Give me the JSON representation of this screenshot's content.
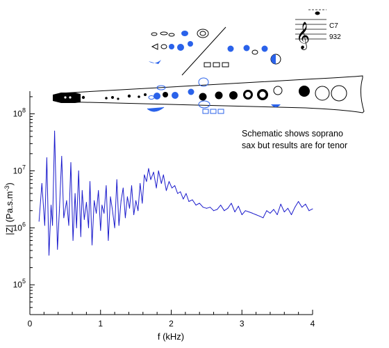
{
  "chart_data": {
    "type": "line",
    "xlabel": "f (kHz)",
    "ylabel_main": "|Z| (Pa.s.m",
    "ylabel_sup": "-3",
    "ylabel_close": ")",
    "xlim": [
      0,
      4
    ],
    "ylim": [
      30000,
      250000000
    ],
    "yscale": "log",
    "grid": false,
    "xticks": [
      0,
      1,
      2,
      3,
      4
    ],
    "xtick_labels": [
      "0",
      "1",
      "2",
      "3",
      "4"
    ],
    "yticks": [
      100000,
      1000000,
      10000000,
      100000000
    ],
    "ytick_base": "10",
    "ytick_exps": [
      "5",
      "6",
      "7",
      "8"
    ],
    "series": [
      {
        "color": "#1a1acc",
        "x": [
          0.13,
          0.17,
          0.21,
          0.24,
          0.27,
          0.3,
          0.32,
          0.35,
          0.39,
          0.42,
          0.45,
          0.48,
          0.52,
          0.55,
          0.58,
          0.61,
          0.64,
          0.66,
          0.69,
          0.72,
          0.74,
          0.77,
          0.8,
          0.83,
          0.85,
          0.88,
          0.91,
          0.94,
          0.97,
          1.0,
          1.02,
          1.05,
          1.08,
          1.11,
          1.14,
          1.17,
          1.2,
          1.23,
          1.26,
          1.29,
          1.32,
          1.35,
          1.38,
          1.41,
          1.44,
          1.47,
          1.5,
          1.53,
          1.56,
          1.59,
          1.62,
          1.65,
          1.68,
          1.71,
          1.75,
          1.79,
          1.82,
          1.86,
          1.89,
          1.93,
          1.97,
          2.01,
          2.05,
          2.09,
          2.13,
          2.17,
          2.21,
          2.25,
          2.3,
          2.35,
          2.4,
          2.45,
          2.5,
          2.55,
          2.6,
          2.65,
          2.7,
          2.75,
          2.8,
          2.85,
          2.9,
          2.95,
          3.0,
          3.05,
          3.1,
          3.15,
          3.2,
          3.25,
          3.3,
          3.35,
          3.4,
          3.45,
          3.5,
          3.55,
          3.6,
          3.65,
          3.7,
          3.75,
          3.8,
          3.85,
          3.9,
          3.95,
          4.0
        ],
        "y": [
          1300000,
          6000000,
          1100000,
          17000000,
          330000,
          2500000,
          1100000,
          50000000,
          420000,
          2300000,
          18000000,
          1500000,
          3000000,
          1100000,
          14000000,
          600000,
          4000000,
          1000000,
          10000000,
          700000,
          4500000,
          1400000,
          2800000,
          1000000,
          6500000,
          500000,
          3000000,
          1800000,
          4500000,
          900000,
          2500000,
          1800000,
          5500000,
          600000,
          3500000,
          2000000,
          1000000,
          7000000,
          1100000,
          3000000,
          5000000,
          1500000,
          3500000,
          2200000,
          5500000,
          1700000,
          3000000,
          2000000,
          6000000,
          2700000,
          8500000,
          6500000,
          11000000,
          7000000,
          9500000,
          5000000,
          10000000,
          6000000,
          8500000,
          4500000,
          6500000,
          5000000,
          5500000,
          4000000,
          4300000,
          3200000,
          4000000,
          2900000,
          3100000,
          2500000,
          2700000,
          2300000,
          2200000,
          2300000,
          2000000,
          2100000,
          2500000,
          2000000,
          2200000,
          2700000,
          1900000,
          2400000,
          1700000,
          2000000,
          1900000,
          1800000,
          1700000,
          1600000,
          1500000,
          2000000,
          1800000,
          2100000,
          1700000,
          2600000,
          1900000,
          2200000,
          1700000,
          2300000,
          2900000,
          2300000,
          2600000,
          2000000,
          2150000
        ]
      }
    ]
  },
  "annotation": {
    "line1": "Schematic shows soprano",
    "line2": "sax but results are for tenor"
  },
  "note_inset": {
    "name": "C7",
    "freq": "932"
  },
  "colors": {
    "curve": "#1a1acc",
    "key_blue": "#2a62ea",
    "axis": "#000000"
  }
}
